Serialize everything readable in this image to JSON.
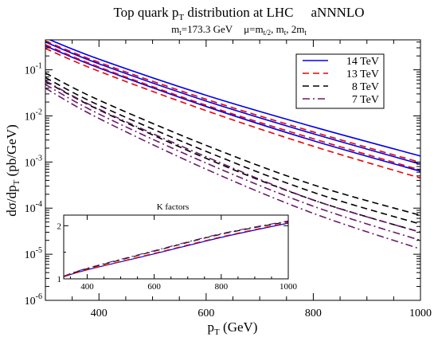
{
  "title": {
    "main": "Top quark p",
    "main_sub": "T",
    "main_tail": " distribution at LHC",
    "tag": "aNNNLO",
    "line2_mt": "m",
    "line2_mt_sub": "t",
    "line2_mt_val": "=173.3 GeV",
    "line2_mu": "μ=m",
    "line2_mu_sub1": "t/2",
    "line2_mu_mid": ", m",
    "line2_mu_sub2": "t",
    "line2_mu_end": ", 2m",
    "line2_mu_sub3": "t"
  },
  "chart_data": [
    {
      "type": "line",
      "name": "main",
      "xlabel": "p",
      "xlabel_sub": "T",
      "xlabel_unit": " (GeV)",
      "ylabel": "dσ/dp",
      "ylabel_sub": "T",
      "ylabel_unit": " (pb/GeV)",
      "xlim": [
        300,
        1000
      ],
      "ylim_log10": [
        -6,
        -0.35
      ],
      "yscale": "log",
      "xticks": [
        400,
        600,
        800,
        1000
      ],
      "ytick_exponents": [
        -6,
        -5,
        -4,
        -3,
        -2,
        -1
      ],
      "ytick_base": "10",
      "legend_position": "top-right",
      "colors": {
        "14 TeV": "#0000ee",
        "13 TeV": "#ee0000",
        "8 TeV": "#000000",
        "7 TeV": "#6a1a6a"
      },
      "series": [
        {
          "name": "14 TeV",
          "style": "solid",
          "x": [
            300,
            400,
            600,
            800,
            1000
          ],
          "y": [
            0.49,
            0.17,
            0.028,
            0.0058,
            0.00135
          ]
        },
        {
          "name": "14 TeV",
          "style": "solid",
          "x": [
            300,
            400,
            600,
            800,
            1000
          ],
          "y": [
            0.4,
            0.135,
            0.021,
            0.0041,
            0.0009
          ]
        },
        {
          "name": "14 TeV",
          "style": "solid",
          "x": [
            300,
            400,
            600,
            800,
            1000
          ],
          "y": [
            0.33,
            0.11,
            0.016,
            0.0029,
            0.00063
          ]
        },
        {
          "name": "13 TeV",
          "style": "dashed",
          "x": [
            300,
            400,
            600,
            800,
            1000
          ],
          "y": [
            0.42,
            0.145,
            0.023,
            0.0045,
            0.00098
          ]
        },
        {
          "name": "13 TeV",
          "style": "dashed",
          "x": [
            300,
            400,
            600,
            800,
            1000
          ],
          "y": [
            0.35,
            0.115,
            0.017,
            0.0032,
            0.00067
          ]
        },
        {
          "name": "13 TeV",
          "style": "dashed",
          "x": [
            300,
            400,
            600,
            800,
            1000
          ],
          "y": [
            0.29,
            0.093,
            0.013,
            0.0022,
            0.00045
          ]
        },
        {
          "name": "8 TeV",
          "style": "dashed",
          "x": [
            300,
            400,
            600,
            800,
            1000
          ],
          "y": [
            0.085,
            0.022,
            0.0023,
            0.00032,
            7e-05
          ]
        },
        {
          "name": "8 TeV",
          "style": "dashed",
          "x": [
            300,
            400,
            600,
            800,
            1000
          ],
          "y": [
            0.068,
            0.017,
            0.0017,
            0.00022,
            4.5e-05
          ]
        },
        {
          "name": "8 TeV",
          "style": "dashed",
          "x": [
            300,
            400,
            600,
            800,
            1000
          ],
          "y": [
            0.056,
            0.0135,
            0.0012,
            0.00015,
            3e-05
          ]
        },
        {
          "name": "7 TeV",
          "style": "dashdot",
          "x": [
            300,
            400,
            600,
            800,
            1000
          ],
          "y": [
            0.058,
            0.014,
            0.0013,
            0.00015,
            3e-05
          ]
        },
        {
          "name": "7 TeV",
          "style": "dashdot",
          "x": [
            300,
            400,
            600,
            800,
            1000
          ],
          "y": [
            0.048,
            0.011,
            0.00095,
            0.00011,
            2e-05
          ]
        },
        {
          "name": "7 TeV",
          "style": "dashdot",
          "x": [
            300,
            400,
            600,
            800,
            1000
          ],
          "y": [
            0.04,
            0.0088,
            0.0007,
            7.7e-05,
            1.3e-05
          ]
        }
      ]
    },
    {
      "type": "line",
      "name": "inset",
      "title": "K factors",
      "xlim": [
        330,
        1000
      ],
      "ylim": [
        1,
        2.2
      ],
      "xticks": [
        400,
        600,
        800,
        1000
      ],
      "yticks": [
        1,
        2
      ],
      "series": [
        {
          "name": "14 TeV",
          "style": "solid",
          "x": [
            330,
            400,
            600,
            800,
            1000
          ],
          "y": [
            1.04,
            1.17,
            1.47,
            1.78,
            2.05
          ]
        },
        {
          "name": "13 TeV",
          "style": "dashed",
          "x": [
            330,
            400,
            600,
            800,
            1000
          ],
          "y": [
            1.04,
            1.17,
            1.48,
            1.79,
            2.06
          ]
        },
        {
          "name": "8 TeV",
          "style": "dashed",
          "x": [
            330,
            400,
            600,
            800,
            1000
          ],
          "y": [
            1.05,
            1.19,
            1.52,
            1.84,
            2.08
          ]
        },
        {
          "name": "7 TeV",
          "style": "dashdot",
          "x": [
            330,
            400,
            600,
            800,
            1000
          ],
          "y": [
            1.05,
            1.2,
            1.53,
            1.85,
            2.09
          ]
        }
      ]
    }
  ]
}
